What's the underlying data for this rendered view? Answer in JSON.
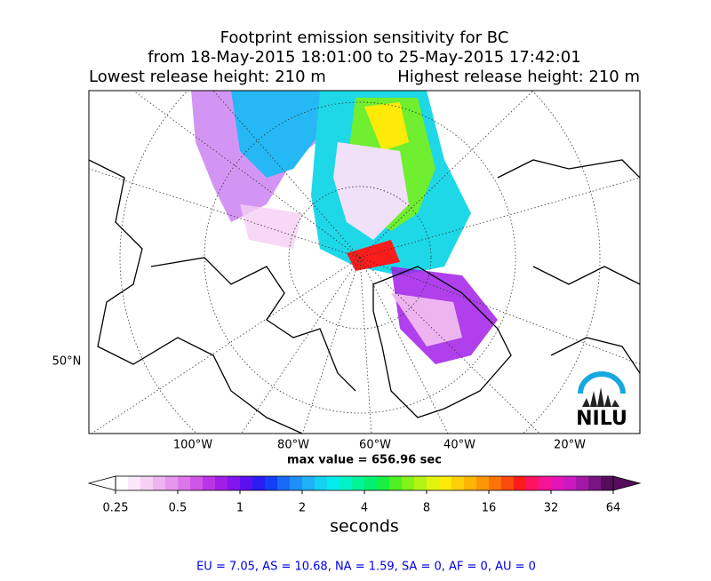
{
  "title": [
    "Footprint emission sensitivity for BC",
    "from 18-May-2015 18:01:00 to 25-May-2015 17:42:01"
  ],
  "subtitle_left": "Lowest release height: 210 m",
  "subtitle_right": "Highest release height: 210 m",
  "map": {
    "lat_labels": [
      "50°N"
    ],
    "lon_labels": [
      "100°W",
      "80°W",
      "60°W",
      "40°W",
      "20°W"
    ],
    "logo": "NILU"
  },
  "max_value": "max value = 656.96 sec",
  "colorbar": {
    "label": "seconds",
    "log": true,
    "ticks": [
      0.25,
      0.5,
      1,
      2,
      4,
      8,
      16,
      32,
      64
    ],
    "colors": [
      "#ffffff",
      "#fbe8fb",
      "#f5d0f5",
      "#eeb4f0",
      "#e696ec",
      "#dd77e8",
      "#cf55e6",
      "#bb33e6",
      "#a11ee8",
      "#8414ec",
      "#5a10f0",
      "#2c1cf4",
      "#1240f6",
      "#1a6af8",
      "#1f8ff8",
      "#1eb2f6",
      "#13d2f2",
      "#06ecec",
      "#00f4c8",
      "#00f49a",
      "#00f070",
      "#1aee40",
      "#4ef024",
      "#82f218",
      "#b4f414",
      "#e2f40e",
      "#fcea08",
      "#fcd006",
      "#fcb406",
      "#fc9606",
      "#fc7408",
      "#fc4a0e",
      "#fc1c1c",
      "#fc1460",
      "#f41496",
      "#e414b8",
      "#cc18c0",
      "#a418a8",
      "#7a1484",
      "#560e5c"
    ]
  },
  "footer": "EU = 7.05,  AS = 10.68,  NA = 1.59,  SA = 0,  AF = 0,  AU = 0"
}
